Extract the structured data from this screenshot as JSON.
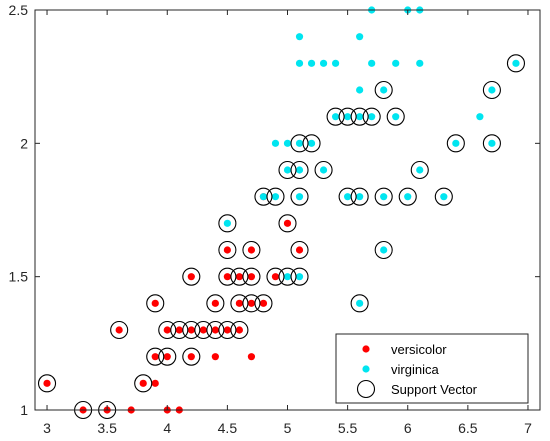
{
  "chart_data": {
    "type": "scatter",
    "title": "",
    "xlabel": "",
    "ylabel": "",
    "xlim": [
      2.9,
      7.1
    ],
    "ylim": [
      1.0,
      2.5
    ],
    "xticks": [
      3,
      3.5,
      4,
      4.5,
      5,
      5.5,
      6,
      6.5,
      7
    ],
    "xtick_labels": [
      "3",
      "3.5",
      "4",
      "4.5",
      "5",
      "5.5",
      "6",
      "6.5",
      "7"
    ],
    "yticks": [
      1,
      1.5,
      2,
      2.5
    ],
    "ytick_labels": [
      "1",
      "1.5",
      "2",
      "2.5"
    ],
    "grid": false,
    "legend_position": "bottom-right",
    "series": [
      {
        "name": "versicolor",
        "color": "#ff0000",
        "marker": "filled-dot",
        "points": [
          [
            3.0,
            1.1
          ],
          [
            3.3,
            1.0
          ],
          [
            3.5,
            1.0
          ],
          [
            3.6,
            1.3
          ],
          [
            3.7,
            1.0
          ],
          [
            3.8,
            1.1
          ],
          [
            3.9,
            1.1
          ],
          [
            3.9,
            1.2
          ],
          [
            3.9,
            1.4
          ],
          [
            4.0,
            1.0
          ],
          [
            4.0,
            1.2
          ],
          [
            4.0,
            1.3
          ],
          [
            4.1,
            1.0
          ],
          [
            4.1,
            1.3
          ],
          [
            4.2,
            1.2
          ],
          [
            4.2,
            1.3
          ],
          [
            4.2,
            1.5
          ],
          [
            4.3,
            1.3
          ],
          [
            4.4,
            1.2
          ],
          [
            4.4,
            1.3
          ],
          [
            4.4,
            1.4
          ],
          [
            4.5,
            1.3
          ],
          [
            4.5,
            1.5
          ],
          [
            4.5,
            1.6
          ],
          [
            4.6,
            1.3
          ],
          [
            4.6,
            1.4
          ],
          [
            4.6,
            1.5
          ],
          [
            4.7,
            1.2
          ],
          [
            4.7,
            1.4
          ],
          [
            4.7,
            1.5
          ],
          [
            4.7,
            1.6
          ],
          [
            4.8,
            1.4
          ],
          [
            4.8,
            1.8
          ],
          [
            4.9,
            1.5
          ],
          [
            5.0,
            1.7
          ],
          [
            5.1,
            1.6
          ]
        ]
      },
      {
        "name": "virginica",
        "color": "#00e5f0",
        "marker": "filled-dot",
        "points": [
          [
            4.5,
            1.7
          ],
          [
            4.8,
            1.8
          ],
          [
            4.9,
            1.8
          ],
          [
            4.9,
            2.0
          ],
          [
            5.0,
            1.5
          ],
          [
            5.0,
            1.9
          ],
          [
            5.0,
            2.0
          ],
          [
            5.1,
            1.5
          ],
          [
            5.1,
            1.8
          ],
          [
            5.1,
            1.9
          ],
          [
            5.1,
            2.0
          ],
          [
            5.1,
            2.3
          ],
          [
            5.1,
            2.4
          ],
          [
            5.2,
            2.0
          ],
          [
            5.2,
            2.3
          ],
          [
            5.3,
            1.9
          ],
          [
            5.3,
            2.3
          ],
          [
            5.4,
            2.1
          ],
          [
            5.4,
            2.3
          ],
          [
            5.5,
            1.8
          ],
          [
            5.5,
            2.1
          ],
          [
            5.6,
            1.4
          ],
          [
            5.6,
            1.8
          ],
          [
            5.6,
            2.1
          ],
          [
            5.6,
            2.2
          ],
          [
            5.6,
            2.4
          ],
          [
            5.7,
            2.1
          ],
          [
            5.7,
            2.3
          ],
          [
            5.7,
            2.5
          ],
          [
            5.8,
            1.6
          ],
          [
            5.8,
            1.8
          ],
          [
            5.8,
            2.2
          ],
          [
            5.9,
            2.1
          ],
          [
            5.9,
            2.3
          ],
          [
            6.0,
            1.8
          ],
          [
            6.0,
            2.5
          ],
          [
            6.1,
            1.9
          ],
          [
            6.1,
            2.3
          ],
          [
            6.1,
            2.5
          ],
          [
            6.3,
            1.8
          ],
          [
            6.4,
            2.0
          ],
          [
            6.6,
            2.1
          ],
          [
            6.7,
            2.0
          ],
          [
            6.7,
            2.2
          ],
          [
            6.9,
            2.3
          ]
        ]
      },
      {
        "name": "Support Vector",
        "color": "#000000",
        "marker": "open-circle",
        "points": [
          [
            3.0,
            1.1
          ],
          [
            3.3,
            1.0
          ],
          [
            3.5,
            1.0
          ],
          [
            3.6,
            1.3
          ],
          [
            3.8,
            1.1
          ],
          [
            3.9,
            1.2
          ],
          [
            3.9,
            1.4
          ],
          [
            4.0,
            1.2
          ],
          [
            4.0,
            1.3
          ],
          [
            4.1,
            1.3
          ],
          [
            4.2,
            1.2
          ],
          [
            4.2,
            1.3
          ],
          [
            4.2,
            1.5
          ],
          [
            4.3,
            1.3
          ],
          [
            4.4,
            1.3
          ],
          [
            4.4,
            1.4
          ],
          [
            4.5,
            1.3
          ],
          [
            4.5,
            1.5
          ],
          [
            4.5,
            1.6
          ],
          [
            4.5,
            1.7
          ],
          [
            4.6,
            1.3
          ],
          [
            4.6,
            1.4
          ],
          [
            4.6,
            1.5
          ],
          [
            4.7,
            1.4
          ],
          [
            4.7,
            1.5
          ],
          [
            4.7,
            1.6
          ],
          [
            4.8,
            1.4
          ],
          [
            4.8,
            1.8
          ],
          [
            4.9,
            1.5
          ],
          [
            4.9,
            1.8
          ],
          [
            5.0,
            1.5
          ],
          [
            5.0,
            1.7
          ],
          [
            5.0,
            1.9
          ],
          [
            5.1,
            1.5
          ],
          [
            5.1,
            1.6
          ],
          [
            5.1,
            1.8
          ],
          [
            5.1,
            1.9
          ],
          [
            5.1,
            2.0
          ],
          [
            5.2,
            2.0
          ],
          [
            5.3,
            1.9
          ],
          [
            5.4,
            2.1
          ],
          [
            5.5,
            1.8
          ],
          [
            5.5,
            2.1
          ],
          [
            5.6,
            1.4
          ],
          [
            5.6,
            1.8
          ],
          [
            5.6,
            2.1
          ],
          [
            5.7,
            2.1
          ],
          [
            5.8,
            1.6
          ],
          [
            5.8,
            1.8
          ],
          [
            5.8,
            2.2
          ],
          [
            5.9,
            2.1
          ],
          [
            6.0,
            1.8
          ],
          [
            6.1,
            1.9
          ],
          [
            6.3,
            1.8
          ],
          [
            6.4,
            2.0
          ],
          [
            6.7,
            2.0
          ],
          [
            6.7,
            2.2
          ],
          [
            6.9,
            2.3
          ]
        ]
      }
    ]
  }
}
